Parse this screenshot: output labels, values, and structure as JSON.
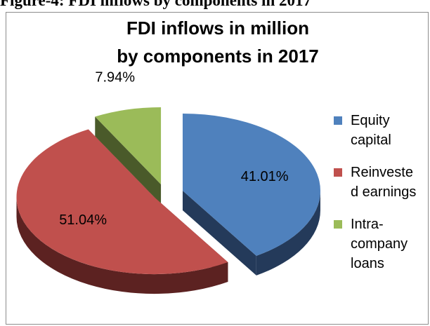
{
  "caption": "Figure-4: FDI inflows by components in 2017",
  "chart_data": {
    "type": "pie",
    "title_lines": [
      "FDI inflows in million",
      "by components in 2017"
    ],
    "categories": [
      "Equity capital",
      "Reinvested earnings",
      "Intra-company loans"
    ],
    "legend_labels": [
      "Equity\ncapital",
      "Reinveste\nd earnings",
      "Intra-\ncompany\nloans"
    ],
    "values": [
      41.01,
      51.04,
      7.94
    ],
    "data_labels": [
      "41.01%",
      "51.04%",
      "7.94%"
    ],
    "colors": [
      "#4f81bd",
      "#c0504d",
      "#9bbb59"
    ],
    "dark_colors": [
      "#243a5a",
      "#5c2221",
      "#4a5a2a"
    ],
    "legend_position": "right",
    "style": "3d-exploded"
  }
}
